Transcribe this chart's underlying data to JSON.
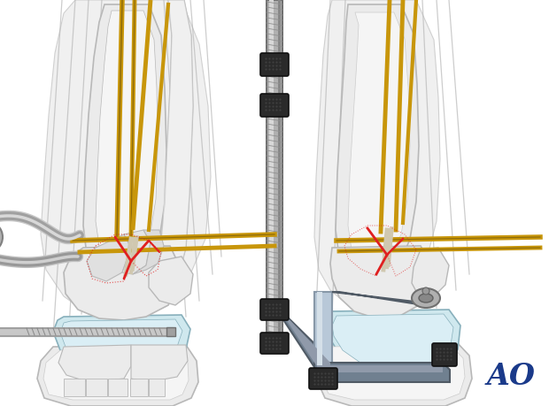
{
  "bg_color": "#ffffff",
  "bone_color": "#ebebeb",
  "bone_outline": "#b8b8b8",
  "bone_inner": "#f5f5f5",
  "cartilage_color": "#cfe8ee",
  "wire_gold": "#c8960a",
  "wire_gold_dark": "#8a6808",
  "wire_gray": "#909090",
  "wire_light": "#d0c8b0",
  "red_color": "#e02020",
  "fixator_silver": "#b8c8d8",
  "fixator_silver_light": "#d5e0e8",
  "fixator_silver_dark": "#8898a8",
  "fixator_gray": "#708090",
  "fixator_gray_dark": "#505a65",
  "fixator_gray_light": "#909aaa",
  "black_knob": "#2a2a2a",
  "screw_gray": "#909090",
  "ao_blue": "#1a3a8a",
  "fig_width": 6.2,
  "fig_height": 4.59,
  "dpi": 100
}
